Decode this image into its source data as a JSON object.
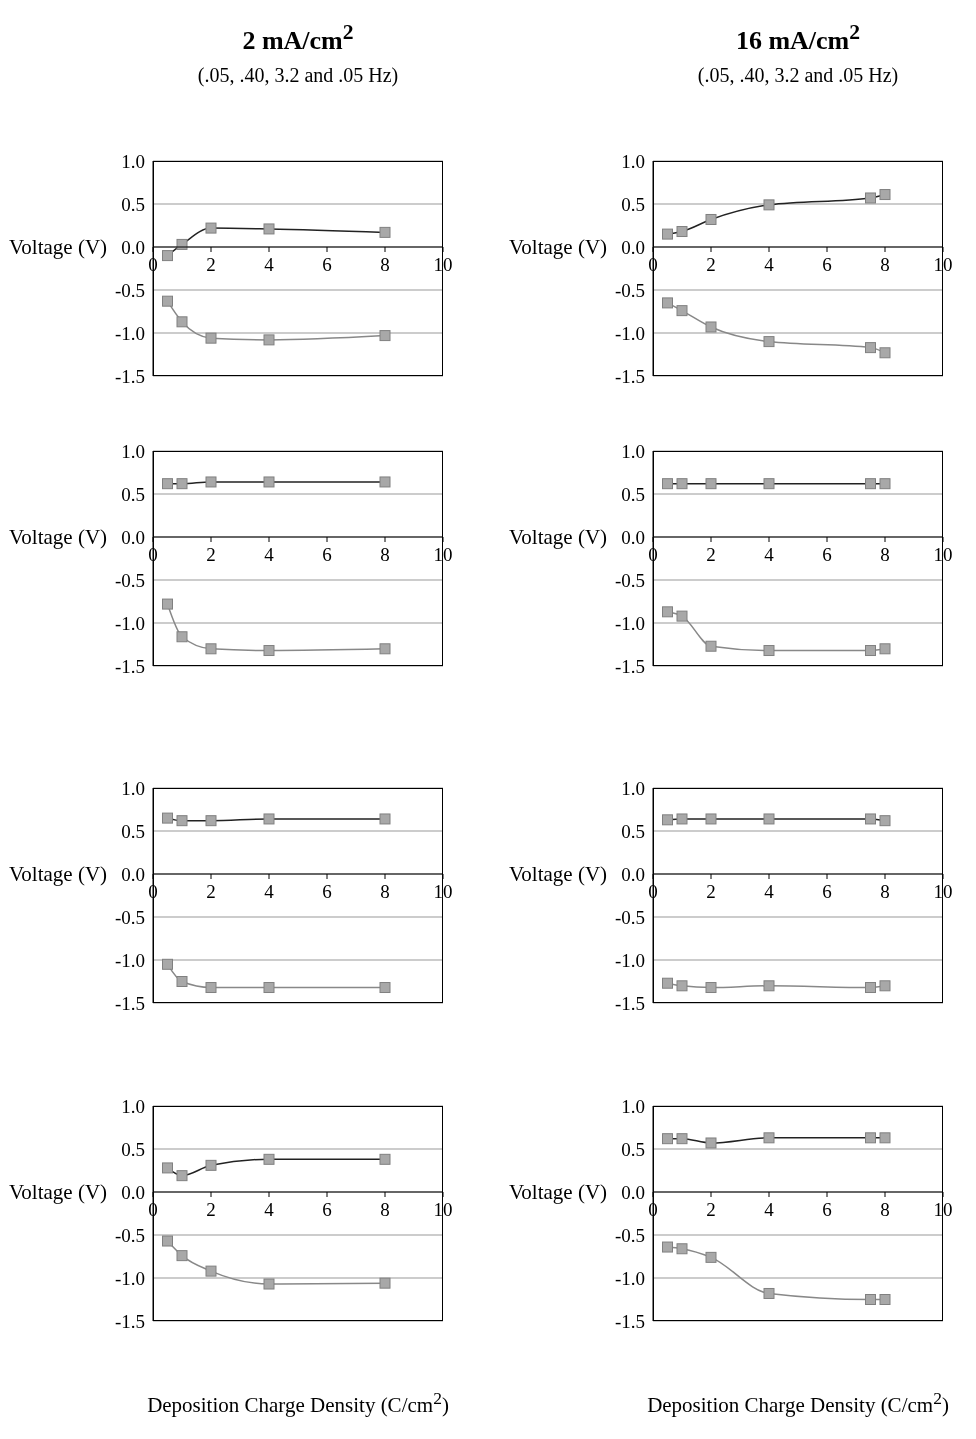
{
  "chart_data": [
    {
      "type": "line",
      "title": "2 mA/cm$^{2}$",
      "subtitle": "(.05, .40, 3.2 and .05 Hz)",
      "ylabel": "Voltage (V)",
      "x": [
        0.5,
        1,
        2,
        4,
        8
      ],
      "xlim": [
        0,
        10
      ],
      "xticks": [
        0,
        2,
        4,
        6,
        8,
        10
      ],
      "ylim": [
        -1.5,
        1.0
      ],
      "yticks": [
        -1.5,
        {
          "value": -1,
          "label": "-1.0"
        },
        -0.5,
        {
          "value": 0,
          "label": "0.0"
        },
        0.5,
        {
          "value": 1,
          "label": "1.0"
        }
      ],
      "grid": "y",
      "marker": "square",
      "legend": false,
      "series": [
        {
          "color": "#222222",
          "values": [
            -0.1,
            0.03,
            0.22,
            0.21,
            0.17
          ]
        },
        {
          "color": "#888888",
          "values": [
            -0.63,
            -0.87,
            -1.06,
            -1.08,
            -1.03
          ]
        }
      ]
    },
    {
      "type": "line",
      "title": "16 mA/cm$^{2}$",
      "subtitle": "(.05, .40, 3.2 and .05 Hz)",
      "ylabel": "Voltage (V)",
      "x": [
        0.5,
        1,
        2,
        4,
        7.5,
        8
      ],
      "xlim": [
        0,
        10
      ],
      "xticks": [
        0,
        2,
        4,
        6,
        8,
        10
      ],
      "ylim": [
        -1.5,
        1.0
      ],
      "yticks": [
        -1.5,
        {
          "value": -1,
          "label": "-1.0"
        },
        -0.5,
        {
          "value": 0,
          "label": "0.0"
        },
        0.5,
        {
          "value": 1,
          "label": "1.0"
        }
      ],
      "grid": "y",
      "marker": "square",
      "legend": false,
      "series": [
        {
          "color": "#222222",
          "values": [
            0.15,
            0.18,
            0.32,
            0.49,
            0.57,
            0.61
          ]
        },
        {
          "color": "#888888",
          "values": [
            -0.65,
            -0.74,
            -0.93,
            -1.1,
            -1.17,
            -1.23
          ]
        }
      ]
    },
    {
      "type": "line",
      "ylabel": "Voltage (V)",
      "x": [
        0.5,
        1,
        2,
        4,
        8
      ],
      "xlim": [
        0,
        10
      ],
      "xticks": [
        0,
        2,
        4,
        6,
        8,
        10
      ],
      "ylim": [
        -1.5,
        1.0
      ],
      "yticks": [
        -1.5,
        {
          "value": -1,
          "label": "-1.0"
        },
        -0.5,
        {
          "value": 0,
          "label": "0.0"
        },
        0.5,
        {
          "value": 1,
          "label": "1.0"
        }
      ],
      "grid": "y",
      "marker": "square",
      "legend": false,
      "series": [
        {
          "color": "#222222",
          "values": [
            0.62,
            0.62,
            0.64,
            0.64,
            0.64
          ]
        },
        {
          "color": "#888888",
          "values": [
            -0.78,
            -1.16,
            -1.3,
            -1.32,
            -1.3
          ]
        }
      ]
    },
    {
      "type": "line",
      "ylabel": "Voltage (V)",
      "x": [
        0.5,
        1,
        2,
        4,
        7.5,
        8
      ],
      "xlim": [
        0,
        10
      ],
      "xticks": [
        0,
        2,
        4,
        6,
        8,
        10
      ],
      "ylim": [
        -1.5,
        1.0
      ],
      "yticks": [
        -1.5,
        {
          "value": -1,
          "label": "-1.0"
        },
        -0.5,
        {
          "value": 0,
          "label": "0.0"
        },
        0.5,
        {
          "value": 1,
          "label": "1.0"
        }
      ],
      "grid": "y",
      "marker": "square",
      "legend": false,
      "series": [
        {
          "color": "#222222",
          "values": [
            0.62,
            0.62,
            0.62,
            0.62,
            0.62,
            0.62
          ]
        },
        {
          "color": "#888888",
          "values": [
            -0.87,
            -0.92,
            -1.27,
            -1.32,
            -1.32,
            -1.3
          ]
        }
      ]
    },
    {
      "type": "line",
      "ylabel": "Voltage (V)",
      "x": [
        0.5,
        1,
        2,
        4,
        8
      ],
      "xlim": [
        0,
        10
      ],
      "xticks": [
        0,
        2,
        4,
        6,
        8,
        10
      ],
      "ylim": [
        -1.5,
        1.0
      ],
      "yticks": [
        -1.5,
        {
          "value": -1,
          "label": "-1.0"
        },
        -0.5,
        {
          "value": 0,
          "label": "0.0"
        },
        0.5,
        {
          "value": 1,
          "label": "1.0"
        }
      ],
      "grid": "y",
      "marker": "square",
      "legend": false,
      "series": [
        {
          "color": "#222222",
          "values": [
            0.65,
            0.62,
            0.62,
            0.64,
            0.64
          ]
        },
        {
          "color": "#888888",
          "values": [
            -1.05,
            -1.25,
            -1.32,
            -1.32,
            -1.32
          ]
        }
      ]
    },
    {
      "type": "line",
      "ylabel": "Voltage (V)",
      "x": [
        0.5,
        1,
        2,
        4,
        7.5,
        8
      ],
      "xlim": [
        0,
        10
      ],
      "xticks": [
        0,
        2,
        4,
        6,
        8,
        10
      ],
      "ylim": [
        -1.5,
        1.0
      ],
      "yticks": [
        -1.5,
        {
          "value": -1,
          "label": "-1.0"
        },
        -0.5,
        {
          "value": 0,
          "label": "0.0"
        },
        0.5,
        {
          "value": 1,
          "label": "1.0"
        }
      ],
      "grid": "y",
      "marker": "square",
      "legend": false,
      "series": [
        {
          "color": "#222222",
          "values": [
            0.63,
            0.64,
            0.64,
            0.64,
            0.64,
            0.62
          ]
        },
        {
          "color": "#888888",
          "values": [
            -1.27,
            -1.3,
            -1.32,
            -1.3,
            -1.32,
            -1.3
          ]
        }
      ]
    },
    {
      "type": "line",
      "ylabel": "Voltage (V)",
      "xlabel": "Deposition Charge Density (C/cm$^{2}$)",
      "x": [
        0.5,
        1,
        2,
        4,
        8
      ],
      "xlim": [
        0,
        10
      ],
      "xticks": [
        0,
        2,
        4,
        6,
        8,
        10
      ],
      "ylim": [
        -1.5,
        1.0
      ],
      "yticks": [
        -1.5,
        {
          "value": -1,
          "label": "-1.0"
        },
        -0.5,
        {
          "value": 0,
          "label": "0.0"
        },
        0.5,
        {
          "value": 1,
          "label": "1.0"
        }
      ],
      "grid": "y",
      "marker": "square",
      "legend": false,
      "series": [
        {
          "color": "#222222",
          "values": [
            0.28,
            0.19,
            0.31,
            0.38,
            0.38
          ]
        },
        {
          "color": "#888888",
          "values": [
            -0.57,
            -0.74,
            -0.92,
            -1.07,
            -1.06
          ]
        }
      ]
    },
    {
      "type": "line",
      "ylabel": "Voltage (V)",
      "xlabel": "Deposition Charge Density (C/cm$^{2}$)",
      "x": [
        0.5,
        1,
        2,
        4,
        7.5,
        8
      ],
      "xlim": [
        0,
        10
      ],
      "xticks": [
        0,
        2,
        4,
        6,
        8,
        10
      ],
      "ylim": [
        -1.5,
        1.0
      ],
      "yticks": [
        -1.5,
        {
          "value": -1,
          "label": "-1.0"
        },
        -0.5,
        {
          "value": 0,
          "label": "0.0"
        },
        0.5,
        {
          "value": 1,
          "label": "1.0"
        }
      ],
      "grid": "y",
      "marker": "square",
      "legend": false,
      "series": [
        {
          "color": "#222222",
          "values": [
            0.62,
            0.62,
            0.57,
            0.63,
            0.63,
            0.63
          ]
        },
        {
          "color": "#888888",
          "values": [
            -0.64,
            -0.66,
            -0.76,
            -1.18,
            -1.25,
            -1.25
          ]
        }
      ]
    }
  ]
}
